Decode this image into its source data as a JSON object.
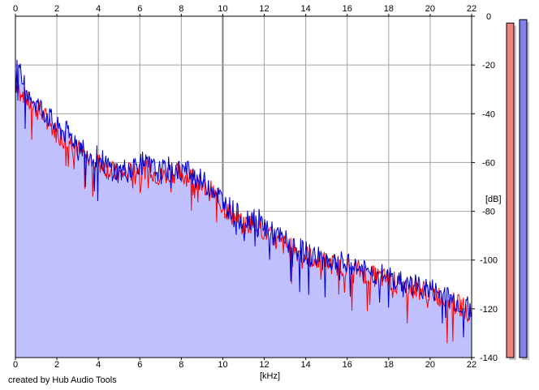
{
  "chart_data": {
    "type": "line",
    "title": "",
    "xlabel": "[kHz]",
    "ylabel": "[dB]",
    "xlim": [
      0,
      22
    ],
    "ylim": [
      -140,
      0
    ],
    "x_ticks": [
      0,
      2,
      4,
      6,
      8,
      10,
      12,
      14,
      16,
      18,
      20,
      22
    ],
    "y_ticks": [
      0,
      -20,
      -40,
      -60,
      -80,
      -100,
      -120,
      -140
    ],
    "x_tick_labels": [
      "0",
      "2",
      "4",
      "6",
      "8",
      "10",
      "12",
      "14",
      "16",
      "18",
      "20",
      "22"
    ],
    "y_tick_labels": [
      "0",
      "-20",
      "-40",
      "-60",
      "-80",
      "-100",
      "-120",
      "-140"
    ],
    "grid": true,
    "series": [
      {
        "color": "#ff0000",
        "x": [
          0.1,
          0.3,
          0.6,
          1.0,
          1.5,
          2.0,
          2.5,
          3.0,
          3.5,
          4.0,
          4.5,
          5.0,
          5.5,
          6.0,
          6.5,
          7.0,
          7.5,
          8.0,
          8.5,
          9.0,
          9.5,
          10.0,
          10.5,
          11.0,
          11.5,
          12.0,
          12.5,
          13.0,
          13.5,
          14.0,
          14.5,
          15.0,
          15.5,
          16.0,
          16.5,
          17.0,
          17.5,
          18.0,
          18.5,
          19.0,
          19.5,
          20.0,
          20.5,
          21.0,
          21.5,
          22.0
        ],
        "y": [
          -28,
          -30,
          -35,
          -38,
          -42,
          -48,
          -50,
          -54,
          -58,
          -60,
          -63,
          -65,
          -64,
          -62,
          -63,
          -66,
          -64,
          -65,
          -66,
          -70,
          -72,
          -78,
          -82,
          -86,
          -84,
          -88,
          -92,
          -94,
          -96,
          -98,
          -100,
          -101,
          -102,
          -103,
          -104,
          -106,
          -107,
          -108,
          -110,
          -111,
          -112,
          -113,
          -115,
          -117,
          -119,
          -122
        ]
      },
      {
        "color": "#0000cc",
        "x": [
          0.1,
          0.3,
          0.6,
          1.0,
          1.5,
          2.0,
          2.5,
          3.0,
          3.5,
          4.0,
          4.5,
          5.0,
          5.5,
          6.0,
          6.5,
          7.0,
          7.5,
          8.0,
          8.5,
          9.0,
          9.5,
          10.0,
          10.5,
          11.0,
          11.5,
          12.0,
          12.5,
          13.0,
          13.5,
          14.0,
          14.5,
          15.0,
          15.5,
          16.0,
          16.5,
          17.0,
          17.5,
          18.0,
          18.5,
          19.0,
          19.5,
          20.0,
          20.5,
          21.0,
          21.5,
          22.0
        ],
        "y": [
          -20,
          -26,
          -30,
          -36,
          -40,
          -46,
          -48,
          -52,
          -56,
          -58,
          -62,
          -64,
          -62,
          -60,
          -62,
          -64,
          -62,
          -63,
          -64,
          -68,
          -70,
          -76,
          -80,
          -84,
          -82,
          -86,
          -90,
          -92,
          -95,
          -97,
          -99,
          -100,
          -101,
          -102,
          -103,
          -105,
          -106,
          -107,
          -109,
          -110,
          -111,
          -112,
          -114,
          -116,
          -118,
          -121
        ]
      }
    ]
  },
  "meters": {
    "left_level_fraction": 0.98,
    "right_level_fraction": 0.99,
    "left_color": "#f08080",
    "right_color": "#8080f0"
  },
  "colors": {
    "fill": "#c0c0ff",
    "grid": "#a0a0a0",
    "major_grid": "#808080"
  },
  "footer": {
    "text": "created by Hub Audio Tools"
  }
}
